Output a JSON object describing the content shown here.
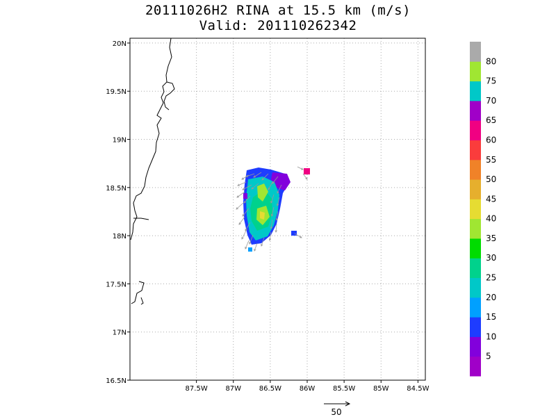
{
  "title": {
    "line1": "20111026H2 RINA at 15.5 km (m/s)",
    "line2": "Valid: 201110262342"
  },
  "map": {
    "lon_range": [
      -88.4,
      -84.4
    ],
    "lat_range": [
      16.5,
      20.05
    ],
    "lon_ticks": [
      {
        "value": -87.5,
        "label": "87.5W"
      },
      {
        "value": -87.0,
        "label": "87W"
      },
      {
        "value": -86.5,
        "label": "86.5W"
      },
      {
        "value": -86.0,
        "label": "86W"
      },
      {
        "value": -85.5,
        "label": "85.5W"
      },
      {
        "value": -85.0,
        "label": "85W"
      },
      {
        "value": -84.5,
        "label": "84.5W"
      }
    ],
    "lat_ticks": [
      {
        "value": 16.5,
        "label": "16.5N"
      },
      {
        "value": 17.0,
        "label": "17N"
      },
      {
        "value": 17.5,
        "label": "17.5N"
      },
      {
        "value": 18.0,
        "label": "18N"
      },
      {
        "value": 18.5,
        "label": "18.5N"
      },
      {
        "value": 19.0,
        "label": "19N"
      },
      {
        "value": 19.5,
        "label": "19.5N"
      },
      {
        "value": 20.0,
        "label": "20N"
      }
    ],
    "grid": true
  },
  "colorbar": {
    "colors": [
      "#a000c8",
      "#8200dc",
      "#1e3cff",
      "#00a0ff",
      "#00c8c8",
      "#00d28c",
      "#00dc00",
      "#a0e632",
      "#e6dc32",
      "#e6af2d",
      "#f08228",
      "#fa3c3c",
      "#f00082",
      "#a000c8",
      "#00c8c8",
      "#a0e632",
      "#aaaaaa"
    ],
    "labels": [
      "5",
      "10",
      "15",
      "20",
      "25",
      "30",
      "35",
      "40",
      "45",
      "50",
      "55",
      "60",
      "65",
      "70",
      "75",
      "80"
    ]
  },
  "vector_key": {
    "label": "50"
  }
}
